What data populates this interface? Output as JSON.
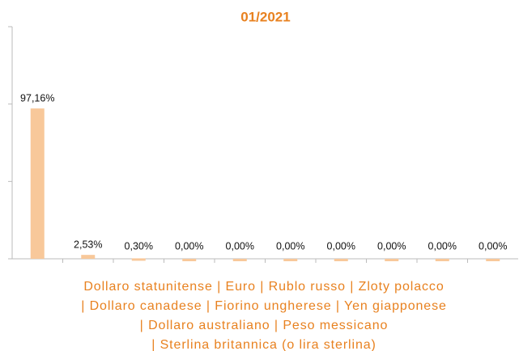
{
  "chart_data": {
    "type": "bar",
    "title": "01/2021",
    "categories": [
      null,
      null,
      null,
      null,
      null,
      null,
      null,
      null,
      null,
      null
    ],
    "values": [
      97.16,
      2.53,
      0.3,
      0,
      0,
      0,
      0,
      0,
      0,
      0
    ],
    "value_labels": [
      "97,16%",
      "2,53%",
      "0,30%",
      "0,00%",
      "0,00%",
      "0,00%",
      "0,00%",
      "0,00%",
      "0,00%",
      "0,00%"
    ],
    "x_label_lines": [
      "Dollaro statunitense | Euro | Rublo russo | Zloty polacco",
      "| Dollaro canadese | Fiorino ungherese | Yen giapponese",
      "| Dollaro australiano | Peso messicano",
      "| Sterlina britannica (o lira sterlina)"
    ],
    "color": "#f8c89a",
    "ylim": [
      0,
      150
    ],
    "yticks": [
      0,
      50,
      100,
      150
    ],
    "grid": false
  }
}
